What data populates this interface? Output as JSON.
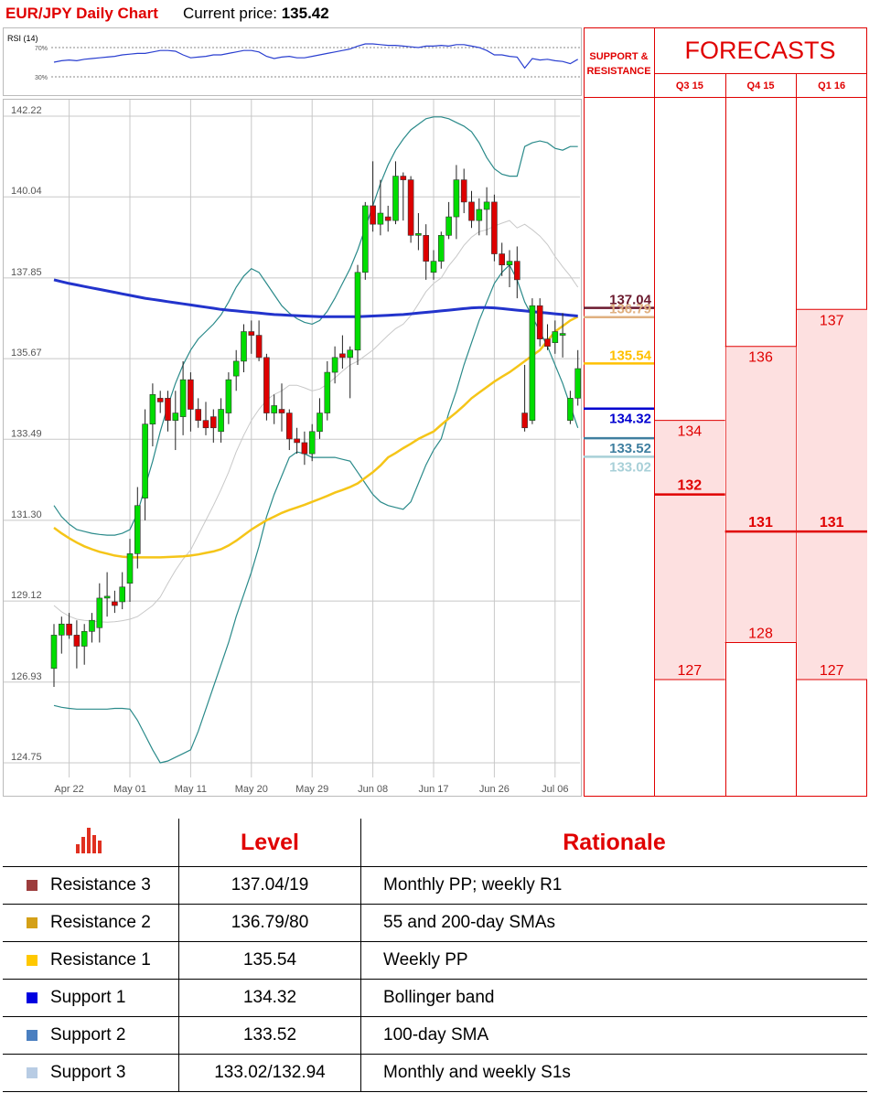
{
  "header": {
    "title": "EUR/JPY Daily Chart",
    "price_label": "Current price:",
    "price": 135.42
  },
  "chart_data": [
    {
      "type": "line",
      "title": "RSI (14)",
      "color": "#2a3fd0",
      "ylim": [
        10,
        90
      ],
      "yticks": [
        {
          "value": 30,
          "label": "30%"
        },
        {
          "value": 70,
          "label": "70%"
        }
      ],
      "grid": true,
      "values": [
        50,
        52,
        53,
        52,
        54,
        55,
        56,
        57,
        58,
        60,
        61,
        62,
        62,
        64,
        66,
        66,
        65,
        60,
        56,
        57,
        58,
        60,
        60,
        62,
        64,
        66,
        66,
        64,
        58,
        55,
        57,
        58,
        56,
        56,
        58,
        60,
        62,
        64,
        66,
        68,
        72,
        75,
        75,
        74,
        73,
        73,
        72,
        71,
        70,
        72,
        72,
        73,
        72,
        74,
        74,
        72,
        70,
        66,
        60,
        60,
        58,
        57,
        42,
        55,
        53,
        54,
        52,
        51,
        48,
        54
      ]
    },
    {
      "type": "candlestick",
      "up_color": "#00dd00",
      "down_color": "#dd0000",
      "grid": true,
      "ylim": [
        124.75,
        142.22
      ],
      "yticks": [
        142.22,
        140.04,
        137.85,
        135.67,
        133.49,
        {
          "value": 131.3,
          "label": "131.30"
        },
        129.12,
        126.93,
        124.75
      ],
      "categories": [
        null,
        null,
        "Apr 22",
        null,
        null,
        null,
        null,
        null,
        null,
        null,
        "May 01",
        null,
        null,
        null,
        null,
        null,
        null,
        null,
        "May 11",
        null,
        null,
        null,
        null,
        null,
        null,
        null,
        "May 20",
        null,
        null,
        null,
        null,
        null,
        null,
        null,
        "May 29",
        null,
        null,
        null,
        null,
        null,
        null,
        null,
        "Jun 08",
        null,
        null,
        null,
        null,
        null,
        null,
        null,
        "Jun 17",
        null,
        null,
        null,
        null,
        null,
        null,
        null,
        "Jun 26",
        null,
        null,
        null,
        null,
        null,
        null,
        null,
        "Jul 06",
        null,
        null,
        null
      ],
      "open": [
        127.3,
        128.2,
        128.5,
        128.2,
        127.9,
        128.3,
        128.4,
        129.2,
        129.1,
        129.1,
        129.6,
        130.4,
        131.9,
        133.9,
        134.6,
        134.6,
        134.0,
        134.1,
        135.1,
        134.3,
        134.0,
        134.1,
        133.7,
        134.2,
        135.2,
        135.6,
        136.4,
        136.3,
        135.7,
        134.2,
        134.3,
        134.2,
        133.5,
        133.4,
        133.1,
        133.7,
        134.2,
        135.3,
        135.8,
        135.7,
        135.9,
        138.0,
        139.8,
        139.3,
        139.5,
        139.4,
        140.6,
        140.5,
        139.0,
        139.0,
        138.0,
        138.3,
        139.0,
        139.5,
        140.5,
        139.9,
        139.4,
        139.7,
        139.9,
        138.5,
        138.2,
        138.3,
        134.2,
        134.0,
        137.1,
        136.2,
        136.1,
        136.3,
        134.0,
        134.6
      ],
      "high": [
        128.5,
        128.7,
        128.8,
        128.6,
        128.5,
        128.8,
        129.6,
        129.9,
        129.4,
        129.9,
        130.8,
        132.2,
        134.3,
        135.0,
        134.8,
        134.8,
        134.8,
        135.6,
        135.3,
        134.6,
        134.5,
        134.3,
        134.6,
        135.3,
        135.9,
        136.6,
        136.7,
        136.7,
        135.8,
        134.7,
        135.0,
        134.3,
        133.8,
        133.7,
        133.9,
        134.6,
        135.6,
        136.0,
        136.3,
        136.0,
        138.2,
        139.9,
        141.0,
        140.5,
        139.8,
        141.0,
        140.7,
        140.6,
        139.6,
        139.3,
        138.6,
        139.1,
        139.9,
        140.9,
        140.8,
        140.2,
        140.0,
        140.3,
        140.1,
        138.8,
        138.6,
        138.7,
        135.5,
        137.3,
        137.3,
        136.6,
        136.7,
        136.9,
        134.8,
        135.9
      ],
      "low": [
        126.8,
        127.7,
        128.1,
        127.3,
        127.4,
        128.0,
        128.0,
        128.7,
        128.8,
        128.9,
        129.1,
        130.0,
        131.3,
        133.3,
        134.2,
        133.7,
        133.2,
        133.6,
        133.7,
        133.8,
        133.6,
        133.4,
        133.4,
        133.9,
        134.8,
        135.3,
        135.8,
        135.6,
        134.0,
        133.9,
        133.7,
        133.2,
        133.1,
        132.8,
        132.9,
        133.5,
        134.0,
        135.0,
        135.4,
        134.6,
        135.5,
        137.8,
        139.1,
        139.0,
        139.1,
        139.3,
        139.4,
        138.8,
        138.6,
        137.8,
        137.8,
        138.1,
        138.9,
        138.9,
        139.6,
        139.2,
        139.0,
        139.0,
        138.3,
        137.9,
        137.6,
        137.3,
        133.7,
        133.9,
        136.0,
        135.9,
        135.8,
        135.7,
        133.9,
        134.4
      ],
      "close": [
        128.2,
        128.5,
        128.2,
        127.9,
        128.3,
        128.6,
        129.2,
        129.25,
        129.0,
        129.5,
        130.4,
        131.7,
        133.9,
        134.7,
        134.5,
        134.0,
        134.2,
        135.1,
        134.3,
        134.0,
        133.8,
        133.8,
        134.3,
        135.1,
        135.6,
        136.4,
        136.3,
        135.7,
        134.2,
        134.4,
        134.2,
        133.5,
        133.4,
        133.1,
        133.7,
        134.2,
        135.3,
        135.7,
        135.7,
        135.9,
        138.0,
        139.8,
        139.3,
        139.6,
        139.4,
        140.6,
        140.5,
        139.0,
        139.05,
        138.3,
        138.3,
        139.0,
        139.5,
        140.5,
        139.9,
        139.4,
        139.7,
        139.9,
        138.5,
        138.2,
        138.3,
        137.8,
        133.8,
        137.1,
        136.2,
        136.0,
        136.4,
        136.35,
        134.6,
        135.4
      ],
      "lines": [
        {
          "color": "#c8c8c8",
          "width": 1,
          "values": [
            129.0,
            128.83,
            128.71,
            128.63,
            128.6,
            128.58,
            128.56,
            128.55,
            128.56,
            128.59,
            128.63,
            128.7,
            128.85,
            129.0,
            129.23,
            129.6,
            129.95,
            130.25,
            130.5,
            130.9,
            131.3,
            131.7,
            132.13,
            132.6,
            133.15,
            133.6,
            134.0,
            134.3,
            134.55,
            134.7,
            134.8,
            134.95,
            134.95,
            134.88,
            134.8,
            134.85,
            134.98,
            135.15,
            135.33,
            135.5,
            135.6,
            135.75,
            135.9,
            136.1,
            136.3,
            136.48,
            136.6,
            136.83,
            137.15,
            137.48,
            137.7,
            137.85,
            138.18,
            138.43,
            138.73,
            138.95,
            139.1,
            139.15,
            139.25,
            139.33,
            139.4,
            139.2,
            139.3,
            139.15,
            138.98,
            138.75,
            138.43,
            138.15,
            137.9,
            137.6
          ]
        },
        {
          "color": "#2a8a8a",
          "width": 1.2,
          "values": [
            131.7,
            131.4,
            131.2,
            131.05,
            131.0,
            130.95,
            130.92,
            130.9,
            130.9,
            130.95,
            131.05,
            131.5,
            132.2,
            132.9,
            133.7,
            134.4,
            135.0,
            135.5,
            135.9,
            136.2,
            136.4,
            136.6,
            136.85,
            137.2,
            137.6,
            137.9,
            138.1,
            138.0,
            137.7,
            137.4,
            137.1,
            136.9,
            136.75,
            136.65,
            136.6,
            136.7,
            136.95,
            137.3,
            137.7,
            138.1,
            138.6,
            139.2,
            139.8,
            140.4,
            140.9,
            141.3,
            141.6,
            141.85,
            142.0,
            142.15,
            142.2,
            142.2,
            142.15,
            142.05,
            141.95,
            141.8,
            141.5,
            141.1,
            140.8,
            140.65,
            140.6,
            140.6,
            141.4,
            141.5,
            141.55,
            141.5,
            141.35,
            141.3,
            141.4,
            141.4
          ]
        },
        {
          "color": "#2a8a8a",
          "width": 1.2,
          "values": [
            126.3,
            126.25,
            126.22,
            126.2,
            126.2,
            126.2,
            126.2,
            126.2,
            126.22,
            126.22,
            126.2,
            125.9,
            125.5,
            125.1,
            124.75,
            124.8,
            124.9,
            125.0,
            125.1,
            125.6,
            126.2,
            126.8,
            127.4,
            128.0,
            128.7,
            129.3,
            129.9,
            130.6,
            131.4,
            132.0,
            132.5,
            133.0,
            133.15,
            133.1,
            133.0,
            133.0,
            133.0,
            133.0,
            132.95,
            132.9,
            132.6,
            132.3,
            132.0,
            131.8,
            131.7,
            131.65,
            131.6,
            131.8,
            132.3,
            132.8,
            133.2,
            133.5,
            134.2,
            134.8,
            135.5,
            136.1,
            136.7,
            137.2,
            137.7,
            138.0,
            138.2,
            137.8,
            137.2,
            136.8,
            136.4,
            136.0,
            135.5,
            135.0,
            134.4,
            133.8
          ]
        },
        {
          "color": "#f5c518",
          "width": 2.5,
          "values": [
            131.1,
            130.95,
            130.82,
            130.7,
            130.6,
            130.52,
            130.45,
            130.4,
            130.35,
            130.32,
            130.3,
            130.3,
            130.3,
            130.3,
            130.3,
            130.31,
            130.32,
            130.33,
            130.35,
            130.38,
            130.42,
            130.46,
            130.52,
            130.62,
            130.75,
            130.9,
            131.05,
            131.18,
            131.3,
            131.4,
            131.5,
            131.58,
            131.65,
            131.72,
            131.8,
            131.88,
            131.96,
            132.05,
            132.12,
            132.2,
            132.3,
            132.45,
            132.6,
            132.78,
            133.0,
            133.12,
            133.25,
            133.37,
            133.5,
            133.6,
            133.7,
            133.88,
            134.05,
            134.22,
            134.4,
            134.6,
            134.75,
            134.9,
            135.05,
            135.18,
            135.3,
            135.45,
            135.6,
            135.75,
            135.9,
            136.15,
            136.4,
            136.55,
            136.7,
            136.8
          ]
        },
        {
          "color": "#2233cc",
          "width": 3,
          "values": [
            137.8,
            137.75,
            137.7,
            137.66,
            137.62,
            137.58,
            137.54,
            137.5,
            137.46,
            137.42,
            137.38,
            137.34,
            137.3,
            137.27,
            137.24,
            137.21,
            137.18,
            137.15,
            137.12,
            137.09,
            137.06,
            137.03,
            137.0,
            136.98,
            136.96,
            136.94,
            136.92,
            136.9,
            136.88,
            136.86,
            136.85,
            136.84,
            136.83,
            136.82,
            136.81,
            136.8,
            136.8,
            136.8,
            136.8,
            136.8,
            136.8,
            136.81,
            136.82,
            136.83,
            136.84,
            136.85,
            136.86,
            136.88,
            136.9,
            136.92,
            136.94,
            136.96,
            136.98,
            137.0,
            137.02,
            137.04,
            137.05,
            137.05,
            137.04,
            137.02,
            137.0,
            136.98,
            136.96,
            136.94,
            136.92,
            136.9,
            136.88,
            136.86,
            136.84,
            136.82
          ]
        }
      ]
    },
    {
      "type": "forecast",
      "title": "FORECASTS",
      "levels_title": "SUPPORT & RESISTANCE",
      "ylim": [
        124.75,
        142.22
      ],
      "color": "#e00000",
      "fill": "#fde0e0",
      "levels": [
        {
          "value": 137.04,
          "color": "#6b1a2e"
        },
        {
          "value": 136.79,
          "color": "#e0b080"
        },
        {
          "value": 135.54,
          "color": "#ffc000"
        },
        {
          "value": 134.32,
          "color": "#0000d0"
        },
        {
          "value": 133.52,
          "color": "#3f7fa0"
        },
        {
          "value": 133.02,
          "color": "#a8d0d8"
        }
      ],
      "categories": [
        "Q3 15",
        "Q4 15",
        "Q1 16"
      ],
      "high": [
        134,
        136,
        137
      ],
      "mid": [
        132,
        131,
        131
      ],
      "low": [
        127,
        128,
        127
      ]
    }
  ],
  "table": {
    "columns": [
      "Level",
      "Rationale"
    ],
    "rows": [
      {
        "name": "Resistance 3",
        "color": "#9c3c3c",
        "level": "137.04/19",
        "rationale": "Monthly PP; weekly R1"
      },
      {
        "name": "Resistance 2",
        "color": "#d4a017",
        "level": "136.79/80",
        "rationale": "55 and 200-day SMAs"
      },
      {
        "name": "Resistance 1",
        "color": "#ffc800",
        "level": "135.54",
        "rationale": "Weekly PP"
      },
      {
        "name": "Support 1",
        "color": "#0000e0",
        "level": "134.32",
        "rationale": "Bollinger band"
      },
      {
        "name": "Support 2",
        "color": "#4a7fc0",
        "level": "133.52",
        "rationale": "100-day SMA"
      },
      {
        "name": "Support 3",
        "color": "#b8cce4",
        "level": "133.02/132.94",
        "rationale": "Monthly and weekly S1s"
      }
    ]
  }
}
